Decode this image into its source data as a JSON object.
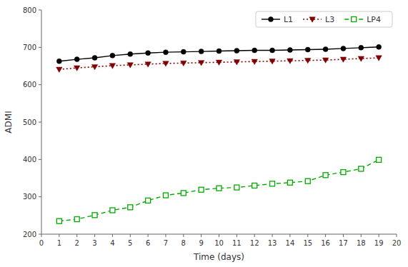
{
  "chart_data": {
    "type": "line",
    "x": [
      1,
      2,
      3,
      4,
      5,
      6,
      7,
      8,
      9,
      10,
      11,
      12,
      13,
      14,
      15,
      16,
      17,
      18,
      19
    ],
    "series": [
      {
        "name": "L1",
        "color": "#000000",
        "marker": "circle",
        "line_style": "solid",
        "values": [
          663,
          668,
          672,
          678,
          682,
          685,
          687,
          688,
          689,
          690,
          691,
          692,
          692,
          693,
          694,
          695,
          697,
          699,
          701
        ]
      },
      {
        "name": "L3",
        "color": "#800000",
        "marker": "triangle-down",
        "line_style": "dotted",
        "values": [
          641,
          645,
          648,
          651,
          653,
          655,
          657,
          658,
          659,
          660,
          661,
          662,
          663,
          664,
          665,
          666,
          668,
          670,
          672
        ]
      },
      {
        "name": "LP4",
        "color": "#00AA00",
        "marker": "square",
        "line_style": "dashed",
        "values": [
          235,
          240,
          251,
          264,
          272,
          290,
          304,
          310,
          319,
          323,
          325,
          330,
          335,
          338,
          342,
          358,
          366,
          375,
          399
        ]
      }
    ],
    "xlabel": "Time (days)",
    "ylabel": "ADMI",
    "xlim": [
      0,
      20
    ],
    "ylim": [
      200,
      800
    ],
    "xticks": [
      0,
      1,
      2,
      3,
      4,
      5,
      6,
      7,
      8,
      9,
      10,
      11,
      12,
      13,
      14,
      15,
      16,
      17,
      18,
      19,
      20
    ],
    "yticks": [
      200,
      300,
      400,
      500,
      600,
      700,
      800
    ],
    "grid": false,
    "legend": "upper right"
  }
}
